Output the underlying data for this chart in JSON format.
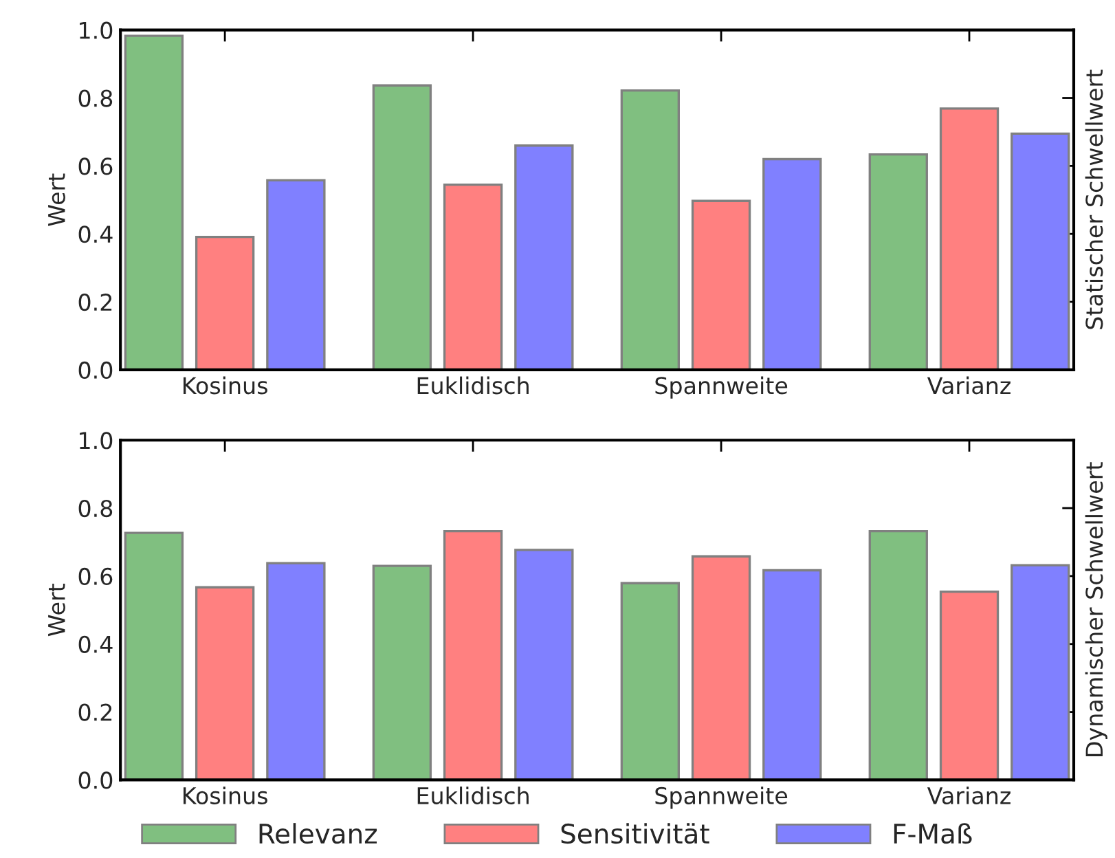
{
  "chart_data": [
    {
      "type": "bar",
      "ylabel": "Wert",
      "y2label": "Statischer Schwellwert",
      "categories": [
        "Kosinus",
        "Euklidisch",
        "Spannweite",
        "Varianz"
      ],
      "series": [
        {
          "name": "Relevanz",
          "color": "#80bf80",
          "values": [
            0.983,
            0.837,
            0.822,
            0.634
          ]
        },
        {
          "name": "Sensitivität",
          "color": "#ff8080",
          "values": [
            0.391,
            0.545,
            0.497,
            0.769
          ]
        },
        {
          "name": "F-Maß",
          "color": "#8080ff",
          "values": [
            0.558,
            0.66,
            0.62,
            0.695
          ]
        }
      ],
      "ylim": [
        0,
        1.0
      ],
      "yticks": [
        {
          "value": 0,
          "label": "0.0"
        },
        {
          "value": 0.2,
          "label": "0.2"
        },
        {
          "value": 0.4,
          "label": "0.4"
        },
        {
          "value": 0.6,
          "label": "0.6"
        },
        {
          "value": 0.8,
          "label": "0.8"
        },
        {
          "value": 1.0,
          "label": "1.0"
        }
      ],
      "grid": false,
      "legend": "bottom"
    },
    {
      "type": "bar",
      "ylabel": "Wert",
      "y2label": "Dynamischer Schwellwert",
      "categories": [
        "Kosinus",
        "Euklidisch",
        "Spannweite",
        "Varianz"
      ],
      "series": [
        {
          "color": "#80bf80",
          "values": [
            0.727,
            0.63,
            0.579,
            0.732
          ]
        },
        {
          "color": "#ff8080",
          "values": [
            0.567,
            0.732,
            0.658,
            0.554
          ]
        },
        {
          "color": "#8080ff",
          "values": [
            0.638,
            0.677,
            0.617,
            0.632
          ]
        }
      ],
      "ylim": [
        0,
        1.0
      ],
      "yticks": [
        {
          "value": 0,
          "label": "0.0"
        },
        {
          "value": 0.2,
          "label": "0.2"
        },
        {
          "value": 0.4,
          "label": "0.4"
        },
        {
          "value": 0.6,
          "label": "0.6"
        },
        {
          "value": 0.8,
          "label": "0.8"
        },
        {
          "value": 1.0,
          "label": "1.0"
        }
      ],
      "grid": false
    }
  ]
}
